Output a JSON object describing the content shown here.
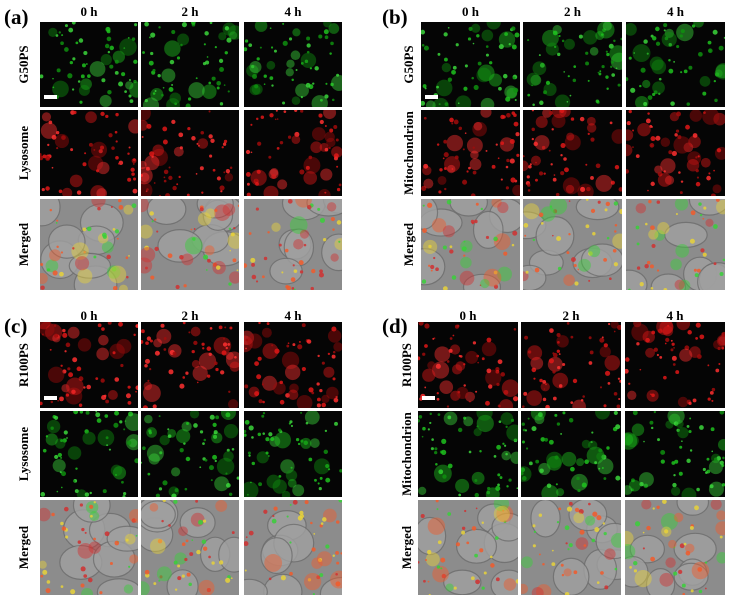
{
  "panels": [
    {
      "label": "(a)",
      "columns": [
        "0 h",
        "2 h",
        "4 h"
      ],
      "rows": [
        "G50PS",
        "Lysosome",
        "Merged"
      ]
    },
    {
      "label": "(b)",
      "columns": [
        "0 h",
        "2 h",
        "4 h"
      ],
      "rows": [
        "G50PS",
        "Mitochondrion",
        "Merged"
      ]
    },
    {
      "label": "(c)",
      "columns": [
        "0 h",
        "2 h",
        "4 h"
      ],
      "rows": [
        "R100PS",
        "Lysosome",
        "Merged"
      ]
    },
    {
      "label": "(d)",
      "columns": [
        "0 h",
        "2 h",
        "4 h"
      ],
      "rows": [
        "R100PS",
        "Mitochondrion",
        "Merged"
      ]
    }
  ]
}
